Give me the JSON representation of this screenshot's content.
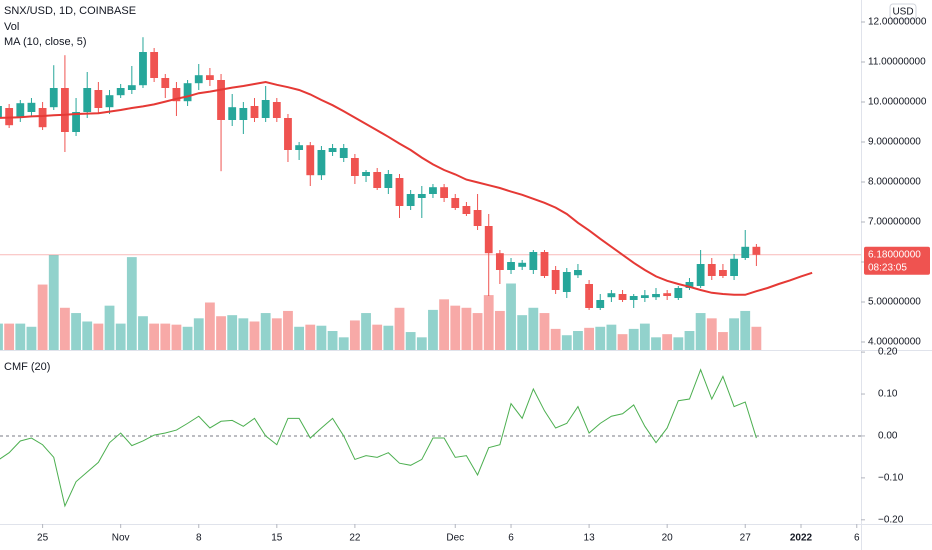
{
  "chart_data": {
    "type": "candlestick",
    "title": "SNX/USD, 1D, COINBASE",
    "volume_label": "Vol",
    "ma_label": "MA (10, close, 5)",
    "currency": "USD",
    "up_color": "#26a69a",
    "down_color": "#ef5350",
    "ma_color": "#e53935",
    "xlim": [
      0.18,
      77.38
    ],
    "xticks": [
      {
        "value": 4,
        "label": "25"
      },
      {
        "value": 11,
        "label": "Nov"
      },
      {
        "value": 18,
        "label": "8"
      },
      {
        "value": 25,
        "label": "15"
      },
      {
        "value": 32,
        "label": "22"
      },
      {
        "value": 41,
        "label": "Dec"
      },
      {
        "value": 46,
        "label": "6"
      },
      {
        "value": 53,
        "label": "13"
      },
      {
        "value": 60,
        "label": "20"
      },
      {
        "value": 67,
        "label": "27"
      },
      {
        "value": 72,
        "label": "2022"
      },
      {
        "value": 77,
        "label": "6"
      }
    ],
    "ylim": [
      3.8,
      12.55
    ],
    "yticks": [
      {
        "value": 12,
        "label": "12.00000000"
      },
      {
        "value": 11,
        "label": "11.00000000"
      },
      {
        "value": 10,
        "label": "10.00000000"
      },
      {
        "value": 9,
        "label": "9.00000000"
      },
      {
        "value": 8,
        "label": "8.00000000"
      },
      {
        "value": 7,
        "label": "7.00000000"
      },
      {
        "value": 6,
        "label": "6.00000000"
      },
      {
        "value": 5,
        "label": "5.00000000"
      },
      {
        "value": 4,
        "label": "4.00000000"
      }
    ],
    "last_price": {
      "value": 6.18,
      "label": "6.18000000",
      "countdown": "08:23:05"
    },
    "open": [
      9.6,
      9.85,
      9.62,
      9.75,
      9.85,
      9.87,
      10.35,
      9.25,
      9.75,
      10.3,
      9.87,
      10.17,
      10.3,
      10.42,
      11.25,
      10.6,
      10.35,
      10.02,
      10.47,
      10.67,
      10.55,
      9.55,
      9.55,
      9.9,
      9.6,
      10.0,
      9.6,
      8.8,
      8.92,
      8.17,
      8.75,
      8.6,
      8.6,
      8.15,
      8.25,
      7.85,
      8.1,
      7.4,
      7.6,
      7.7,
      7.87,
      7.6,
      7.4,
      7.3,
      6.9,
      6.22,
      5.8,
      5.88,
      5.8,
      6.25,
      5.8,
      5.25,
      5.67,
      5.45,
      4.85,
      5.12,
      5.2,
      5.05,
      5.1,
      5.12,
      5.22,
      5.1,
      5.35,
      5.4,
      5.95,
      5.8,
      5.65,
      6.1,
      6.38
    ],
    "high": [
      10.0,
      9.95,
      10.05,
      10.1,
      10.0,
      10.92,
      11.17,
      10.1,
      10.75,
      10.5,
      10.3,
      10.45,
      10.9,
      11.62,
      11.35,
      10.7,
      10.5,
      10.55,
      10.95,
      10.85,
      10.7,
      10.2,
      10.0,
      10.1,
      10.4,
      10.1,
      9.7,
      9.0,
      9.0,
      8.9,
      8.95,
      8.95,
      8.7,
      8.3,
      8.35,
      8.3,
      8.2,
      7.8,
      7.9,
      7.95,
      7.95,
      7.7,
      7.5,
      7.7,
      7.2,
      6.3,
      6.1,
      6.05,
      6.3,
      6.3,
      5.9,
      5.85,
      5.95,
      5.55,
      5.2,
      5.3,
      5.3,
      5.2,
      5.3,
      5.35,
      5.3,
      5.4,
      5.6,
      6.3,
      6.1,
      5.95,
      6.2,
      6.8,
      6.45
    ],
    "low": [
      9.5,
      9.35,
      9.5,
      9.65,
      9.3,
      9.8,
      8.75,
      9.15,
      9.6,
      9.7,
      9.7,
      10.1,
      10.2,
      10.35,
      10.5,
      10.1,
      9.65,
      9.9,
      10.3,
      10.4,
      8.27,
      9.4,
      9.2,
      9.5,
      9.5,
      9.5,
      8.5,
      8.55,
      7.9,
      8.05,
      8.65,
      8.5,
      7.95,
      8.0,
      7.8,
      7.7,
      7.1,
      7.3,
      7.1,
      7.6,
      7.5,
      7.3,
      7.15,
      6.8,
      5.15,
      5.45,
      5.7,
      5.8,
      5.7,
      5.6,
      5.2,
      5.1,
      5.6,
      4.8,
      4.8,
      5.0,
      5.0,
      4.85,
      5.0,
      5.05,
      5.05,
      5.05,
      5.3,
      5.35,
      5.55,
      5.6,
      5.55,
      6.05,
      5.9
    ],
    "close": [
      9.9,
      9.42,
      9.97,
      9.98,
      9.37,
      10.35,
      9.25,
      9.75,
      10.35,
      9.85,
      10.17,
      10.35,
      10.42,
      11.25,
      10.6,
      10.35,
      10.02,
      10.47,
      10.67,
      10.55,
      9.55,
      9.87,
      9.85,
      9.6,
      10.05,
      9.6,
      8.8,
      8.92,
      8.17,
      8.8,
      8.85,
      8.85,
      8.15,
      8.25,
      7.85,
      8.2,
      7.4,
      7.7,
      7.7,
      7.87,
      7.6,
      7.35,
      7.2,
      6.9,
      6.22,
      5.8,
      6.0,
      5.98,
      6.25,
      5.65,
      5.3,
      5.75,
      5.8,
      4.85,
      5.05,
      5.22,
      5.05,
      5.15,
      5.17,
      5.2,
      5.15,
      5.35,
      5.5,
      5.95,
      5.65,
      5.65,
      6.08,
      6.38,
      6.18
    ],
    "volume": [
      25,
      25,
      25,
      22,
      62,
      90,
      40,
      35,
      27,
      25,
      42,
      25,
      88,
      32,
      25,
      25,
      24,
      22,
      30,
      45,
      32,
      33,
      30,
      27,
      35,
      30,
      37,
      22,
      24,
      23,
      18,
      12,
      28,
      35,
      24,
      23,
      40,
      17,
      12,
      38,
      48,
      42,
      40,
      35,
      52,
      37,
      63,
      33,
      40,
      35,
      20,
      14,
      18,
      21,
      22,
      24,
      15,
      20,
      25,
      12,
      15,
      12,
      18,
      35,
      30,
      17,
      30,
      37,
      22
    ],
    "ma": [
      9.6,
      9.61,
      9.62,
      9.64,
      9.65,
      9.67,
      9.68,
      9.7,
      9.71,
      9.72,
      9.76,
      9.8,
      9.85,
      9.89,
      9.94,
      10.01,
      10.08,
      10.14,
      10.22,
      10.26,
      10.31,
      10.36,
      10.4,
      10.45,
      10.5,
      10.43,
      10.37,
      10.3,
      10.19,
      10.05,
      9.92,
      9.77,
      9.61,
      9.45,
      9.29,
      9.13,
      8.96,
      8.8,
      8.61,
      8.44,
      8.3,
      8.19,
      8.06,
      7.99,
      7.92,
      7.85,
      7.76,
      7.68,
      7.58,
      7.48,
      7.36,
      7.2,
      6.98,
      6.79,
      6.58,
      6.38,
      6.18,
      5.98,
      5.8,
      5.64,
      5.53,
      5.45,
      5.38,
      5.3,
      5.23,
      5.2,
      5.18,
      5.18,
      5.27,
      5.35,
      5.45,
      5.54,
      5.64,
      5.73
    ],
    "cmf": {
      "title": "CMF (20)",
      "color": "#4caf50",
      "ylim": [
        -0.21,
        0.205
      ],
      "yticks": [
        {
          "value": 0.2,
          "label": "0.20"
        },
        {
          "value": 0.1,
          "label": "0.10"
        },
        {
          "value": 0,
          "label": "0.00"
        },
        {
          "value": -0.1,
          "label": "−0.10"
        },
        {
          "value": -0.2,
          "label": "−0.20"
        }
      ],
      "values": [
        -0.058,
        -0.04,
        -0.012,
        -0.005,
        -0.021,
        -0.051,
        -0.167,
        -0.109,
        -0.086,
        -0.063,
        -0.016,
        0.007,
        -0.023,
        -0.012,
        0.002,
        0.007,
        0.014,
        0.03,
        0.047,
        0.019,
        0.035,
        0.037,
        0.023,
        0.042,
        0.0,
        -0.021,
        0.042,
        0.042,
        -0.005,
        0.019,
        0.042,
        0.0,
        -0.056,
        -0.047,
        -0.051,
        -0.04,
        -0.065,
        -0.07,
        -0.056,
        -0.005,
        -0.005,
        -0.051,
        -0.047,
        -0.093,
        -0.028,
        -0.021,
        0.077,
        0.042,
        0.112,
        0.06,
        0.019,
        0.03,
        0.07,
        0.007,
        0.03,
        0.047,
        0.053,
        0.074,
        0.023,
        -0.016,
        0.019,
        0.084,
        0.088,
        0.158,
        0.088,
        0.142,
        0.07,
        0.081,
        -0.005
      ]
    }
  }
}
